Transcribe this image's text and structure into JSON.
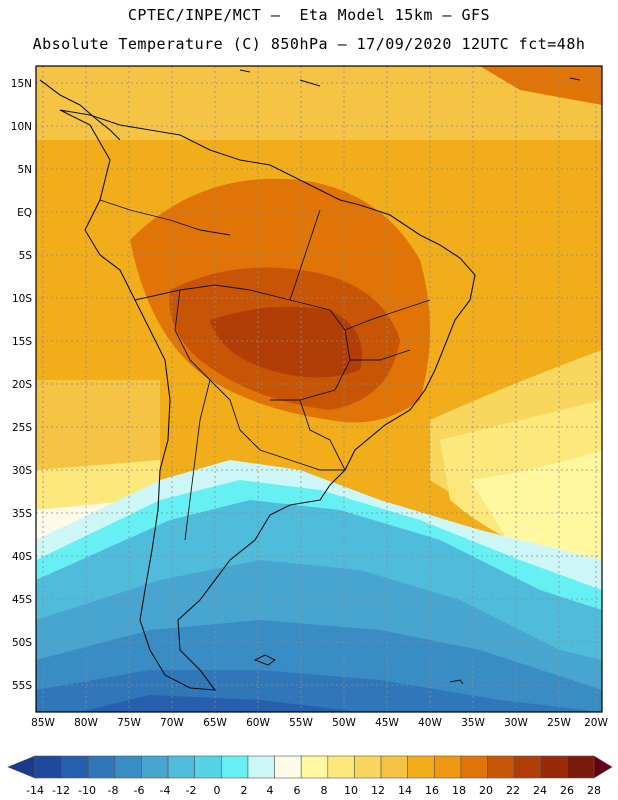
{
  "header": {
    "title_line1": "CPTEC/INPE/MCT –  Eta Model 15km – GFS",
    "title_line2": "Absolute Temperature (C) 850hPa – 17/09/2020 12UTC fct=48h"
  },
  "map": {
    "lat_labels": [
      "15N",
      "10N",
      "5N",
      "EQ",
      "5S",
      "10S",
      "15S",
      "20S",
      "25S",
      "30S",
      "35S",
      "40S",
      "45S",
      "50S",
      "55S"
    ],
    "lon_labels": [
      "85W",
      "80W",
      "75W",
      "70W",
      "65W",
      "60W",
      "55W",
      "50W",
      "45W",
      "40W",
      "35W",
      "30W",
      "25W",
      "20W"
    ]
  },
  "colorbar": {
    "tick_labels": [
      "-14",
      "-12",
      "-10",
      "-8",
      "-6",
      "-4",
      "-2",
      "0",
      "2",
      "4",
      "6",
      "8",
      "10",
      "12",
      "14",
      "16",
      "18",
      "20",
      "22",
      "24",
      "26",
      "28"
    ],
    "colors": [
      "#1b3a8c",
      "#1f4a9c",
      "#2660ad",
      "#2f77b8",
      "#3a8dc4",
      "#47a5cf",
      "#4fbcdc",
      "#57d3e8",
      "#66f0f4",
      "#cdf7f7",
      "#fdfbe8",
      "#fff8a0",
      "#fde87c",
      "#f9d75e",
      "#f5c444",
      "#f2ad1a",
      "#ef9810",
      "#e07406",
      "#c85406",
      "#b03e06",
      "#972a08",
      "#7a1a0a",
      "#66001a"
    ]
  }
}
